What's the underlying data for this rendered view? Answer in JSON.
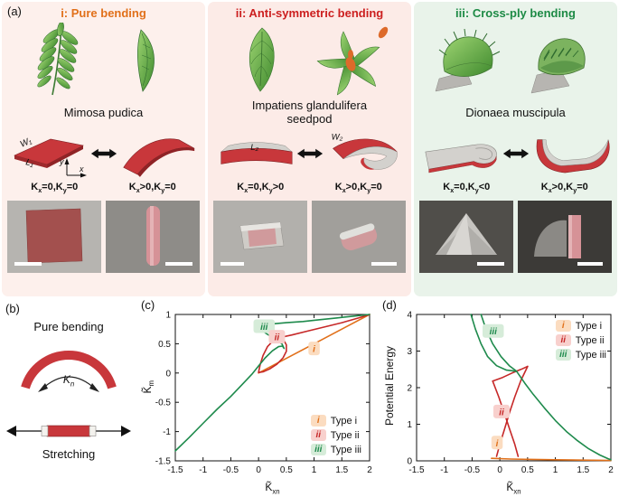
{
  "a": {
    "label": "(a)",
    "columns": [
      {
        "id": "i",
        "title": "i: Pure bending",
        "title_color": "#e1701a",
        "bg": "#fdf0ec",
        "species": "Mimosa pudica",
        "width_label": "W₁",
        "length_label": "L₁",
        "axis_x": "x",
        "axis_y": "y",
        "left_state": "K_{x}=0,K_{y}=0",
        "right_state": "K_{x}>0,K_{y}=0"
      },
      {
        "id": "ii",
        "title": "ii: Anti-symmetric bending",
        "title_color": "#cc1f1f",
        "bg": "#fcebe7",
        "species": "Impatiens glandulifera seedpod",
        "length_label": "L₂",
        "width_label": "W₂",
        "left_state": "K_{x}=0,K_{y}>0",
        "right_state": "K_{x}>0,K_{y}=0"
      },
      {
        "id": "iii",
        "title": "iii: Cross-ply bending",
        "title_color": "#1d8a45",
        "bg": "#e9f3ea",
        "species": "Dionaea muscipula",
        "left_state": "K_{x}=0,K_{y}<0",
        "right_state": "K_{x}>0,K_{y}=0"
      }
    ]
  },
  "b": {
    "label": "(b)",
    "bending_label": "Pure bending",
    "kn_label": "K_{n}",
    "stretching_label": "Stretching",
    "bar_color": "#c8373b"
  },
  "chart_data": [
    {
      "id": "c",
      "panel_label": "(c)",
      "type": "line",
      "xlabel": "K̃_{xn}",
      "ylabel": "K̃_{m}",
      "xlim": [
        -1.5,
        2
      ],
      "ylim": [
        -1.5,
        1
      ],
      "xticks": [
        -1.5,
        -1,
        -0.5,
        0,
        0.5,
        1,
        1.5,
        2
      ],
      "yticks": [
        -1.5,
        -1,
        -0.5,
        0,
        0.5,
        1
      ],
      "grid": false,
      "series": [
        {
          "name": "Type i",
          "color": "#e1701a",
          "points": [
            [
              0,
              0
            ],
            [
              0.5,
              0.25
            ],
            [
              1,
              0.5
            ],
            [
              1.5,
              0.75
            ],
            [
              2,
              1
            ]
          ]
        },
        {
          "name": "Type ii loop",
          "color": "#c62828",
          "points": [
            [
              0,
              0.01
            ],
            [
              0.03,
              0.15
            ],
            [
              0.08,
              0.3
            ],
            [
              0.16,
              0.45
            ],
            [
              0.26,
              0.55
            ],
            [
              0.36,
              0.6
            ],
            [
              0.45,
              0.57
            ],
            [
              0.5,
              0.48
            ],
            [
              0.5,
              0.37
            ],
            [
              0.44,
              0.26
            ],
            [
              0.33,
              0.15
            ],
            [
              0.2,
              0.07
            ],
            [
              0.08,
              0.02
            ],
            [
              0,
              0.01
            ]
          ]
        },
        {
          "name": "Type ii branch",
          "color": "#c62828",
          "points": [
            [
              0.36,
              0.6
            ],
            [
              0.6,
              0.65
            ],
            [
              0.9,
              0.72
            ],
            [
              1.2,
              0.79
            ],
            [
              1.5,
              0.86
            ],
            [
              1.8,
              0.94
            ],
            [
              2,
              1
            ]
          ]
        },
        {
          "name": "Type iii",
          "color": "#1e8a4c",
          "points": [
            [
              -1.5,
              -1.33
            ],
            [
              -1.25,
              -1.1
            ],
            [
              -1.0,
              -0.86
            ],
            [
              -0.75,
              -0.62
            ],
            [
              -0.5,
              -0.4
            ],
            [
              -0.3,
              -0.2
            ],
            [
              -0.12,
              -0.02
            ],
            [
              0.0,
              0.12
            ],
            [
              0.12,
              0.26
            ],
            [
              0.25,
              0.38
            ],
            [
              0.36,
              0.45
            ],
            [
              0.43,
              0.46
            ],
            [
              0.46,
              0.42
            ],
            [
              0.42,
              0.5
            ],
            [
              0.3,
              0.58
            ],
            [
              0.16,
              0.66
            ],
            [
              0.05,
              0.73
            ],
            [
              0.0,
              0.79
            ],
            [
              0.08,
              0.82
            ],
            [
              0.25,
              0.84
            ],
            [
              0.5,
              0.86
            ],
            [
              0.8,
              0.88
            ],
            [
              1.1,
              0.91
            ],
            [
              1.4,
              0.94
            ],
            [
              1.7,
              0.97
            ],
            [
              2,
              1
            ]
          ]
        }
      ],
      "annotations": [
        {
          "text": "iii",
          "x": 0.1,
          "y": 0.8,
          "fg": "#1e8a4c",
          "bg": "#d6ecd9"
        },
        {
          "text": "ii",
          "x": 0.33,
          "y": 0.62,
          "fg": "#c62828",
          "bg": "#f8d0cd"
        },
        {
          "text": "i",
          "x": 1.0,
          "y": 0.42,
          "fg": "#e1701a",
          "bg": "#fbdcc0"
        }
      ],
      "legend": {
        "position": "bottom-right",
        "items": [
          {
            "key": "i",
            "label": "Type i",
            "fg": "#e1701a",
            "bg": "#fbdcc0"
          },
          {
            "key": "ii",
            "label": "Type ii",
            "fg": "#c62828",
            "bg": "#f8d0cd"
          },
          {
            "key": "iii",
            "label": "Type iii",
            "fg": "#1e8a4c",
            "bg": "#d6ecd9"
          }
        ]
      }
    },
    {
      "id": "d",
      "panel_label": "(d)",
      "type": "line",
      "xlabel": "K̃_{xn}",
      "ylabel": "Potential Energy",
      "xlim": [
        -1.5,
        2
      ],
      "ylim": [
        0,
        4
      ],
      "xticks": [
        -1.5,
        -1,
        -0.5,
        0,
        0.5,
        1,
        1.5,
        2
      ],
      "yticks": [
        0,
        1,
        2,
        3,
        4
      ],
      "grid": false,
      "series": [
        {
          "name": "Type i",
          "color": "#e1701a",
          "points": [
            [
              -0.15,
              0.07
            ],
            [
              0.2,
              0.05
            ],
            [
              0.6,
              0.04
            ],
            [
              1.0,
              0.03
            ],
            [
              1.5,
              0.02
            ],
            [
              2,
              0.01
            ]
          ]
        },
        {
          "name": "Type ii upper",
          "color": "#c62828",
          "points": [
            [
              -0.13,
              2.18
            ],
            [
              0.05,
              2.28
            ],
            [
              0.22,
              2.4
            ],
            [
              0.38,
              2.5
            ],
            [
              0.5,
              2.58
            ]
          ]
        },
        {
          "name": "Type ii fold a",
          "color": "#c62828",
          "points": [
            [
              0.5,
              2.58
            ],
            [
              0.38,
              2.2
            ],
            [
              0.27,
              1.75
            ],
            [
              0.17,
              1.3
            ],
            [
              0.08,
              0.85
            ],
            [
              0.0,
              0.45
            ],
            [
              -0.06,
              0.12
            ]
          ]
        },
        {
          "name": "Type ii fold b",
          "color": "#c62828",
          "points": [
            [
              -0.13,
              2.18
            ],
            [
              -0.02,
              1.75
            ],
            [
              0.08,
              1.3
            ],
            [
              0.18,
              0.85
            ],
            [
              0.27,
              0.45
            ],
            [
              0.33,
              0.12
            ]
          ]
        },
        {
          "name": "Type iii branch a",
          "color": "#1e8a4c",
          "points": [
            [
              -0.52,
              4.0
            ],
            [
              -0.44,
              3.6
            ],
            [
              -0.34,
              3.2
            ],
            [
              -0.22,
              2.85
            ],
            [
              -0.06,
              2.6
            ],
            [
              0.12,
              2.48
            ],
            [
              0.3,
              2.45
            ]
          ]
        },
        {
          "name": "Type iii branch b",
          "color": "#1e8a4c",
          "points": [
            [
              -0.34,
              4.0
            ],
            [
              -0.25,
              3.6
            ],
            [
              -0.13,
              3.2
            ],
            [
              0.02,
              2.85
            ],
            [
              0.17,
              2.6
            ],
            [
              0.3,
              2.45
            ]
          ]
        },
        {
          "name": "Type iii main",
          "color": "#1e8a4c",
          "points": [
            [
              0.3,
              2.45
            ],
            [
              0.45,
              2.12
            ],
            [
              0.6,
              1.82
            ],
            [
              0.8,
              1.45
            ],
            [
              1.0,
              1.1
            ],
            [
              1.2,
              0.8
            ],
            [
              1.4,
              0.55
            ],
            [
              1.6,
              0.33
            ],
            [
              1.8,
              0.16
            ],
            [
              1.95,
              0.06
            ],
            [
              2,
              0.03
            ]
          ]
        }
      ],
      "annotations": [
        {
          "text": "iii",
          "x": -0.12,
          "y": 3.55,
          "fg": "#1e8a4c",
          "bg": "#d6ecd9"
        },
        {
          "text": "ii",
          "x": 0.03,
          "y": 1.35,
          "fg": "#c62828",
          "bg": "#f8d0cd"
        },
        {
          "text": "i",
          "x": -0.05,
          "y": 0.5,
          "fg": "#e1701a",
          "bg": "#fbdcc0"
        }
      ],
      "legend": {
        "position": "top-right",
        "items": [
          {
            "key": "i",
            "label": "Type i",
            "fg": "#e1701a",
            "bg": "#fbdcc0"
          },
          {
            "key": "ii",
            "label": "Type ii",
            "fg": "#c62828",
            "bg": "#f8d0cd"
          },
          {
            "key": "iii",
            "label": "Type iii",
            "fg": "#1e8a4c",
            "bg": "#d6ecd9"
          }
        ]
      }
    }
  ]
}
